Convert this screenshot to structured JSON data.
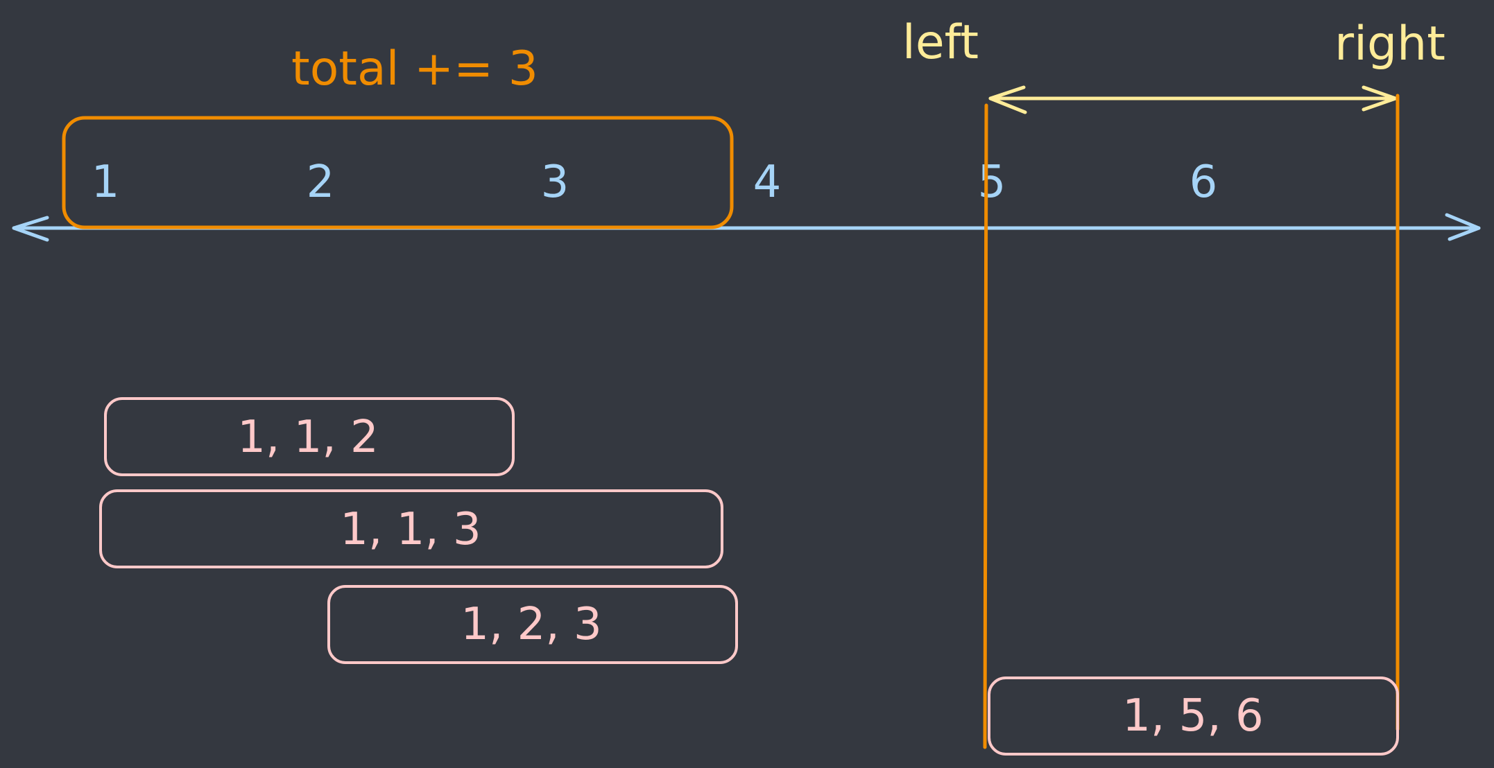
{
  "colors": {
    "background": "#343840",
    "number_line": "#a6d4f7",
    "window": "#f08c00",
    "pointer": "#ffec99",
    "combination": "#ffc9c9"
  },
  "number_line": {
    "numbers": [
      "1",
      "2",
      "3",
      "4",
      "5",
      "6"
    ]
  },
  "total_label": "total += 3",
  "pointers": {
    "left": "left",
    "right": "right"
  },
  "combinations": [
    "1, 1, 2",
    "1, 1, 3",
    "1, 2, 3",
    "1, 5, 6"
  ]
}
